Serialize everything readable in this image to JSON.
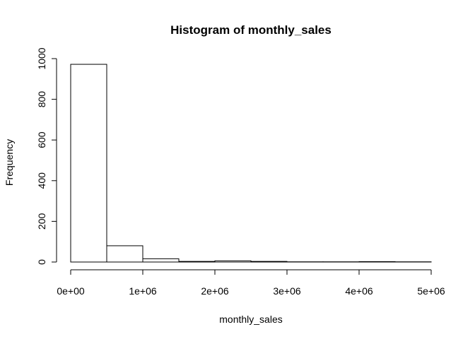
{
  "chart_data": {
    "type": "bar",
    "title": "Histogram of monthly_sales",
    "xlabel": "monthly_sales",
    "ylabel": "Frequency",
    "bins": [
      {
        "start": 0,
        "end": 500000,
        "count": 972
      },
      {
        "start": 500000,
        "end": 1000000,
        "count": 80
      },
      {
        "start": 1000000,
        "end": 1500000,
        "count": 16
      },
      {
        "start": 1500000,
        "end": 2000000,
        "count": 3
      },
      {
        "start": 2000000,
        "end": 2500000,
        "count": 6
      },
      {
        "start": 2500000,
        "end": 3000000,
        "count": 3
      },
      {
        "start": 3000000,
        "end": 3500000,
        "count": 1
      },
      {
        "start": 3500000,
        "end": 4000000,
        "count": 1
      },
      {
        "start": 4000000,
        "end": 4500000,
        "count": 2
      },
      {
        "start": 4500000,
        "end": 5000000,
        "count": 1
      }
    ],
    "xlim": [
      0,
      5000000
    ],
    "ylim": [
      0,
      1000
    ],
    "x_ticks": [
      {
        "value": 0,
        "label": "0e+00"
      },
      {
        "value": 1000000,
        "label": "1e+06"
      },
      {
        "value": 2000000,
        "label": "2e+06"
      },
      {
        "value": 3000000,
        "label": "3e+06"
      },
      {
        "value": 4000000,
        "label": "4e+06"
      },
      {
        "value": 5000000,
        "label": "5e+06"
      }
    ],
    "y_ticks": [
      {
        "value": 0,
        "label": "0"
      },
      {
        "value": 200,
        "label": "200"
      },
      {
        "value": 400,
        "label": "400"
      },
      {
        "value": 600,
        "label": "600"
      },
      {
        "value": 800,
        "label": "800"
      },
      {
        "value": 1000,
        "label": "1000"
      }
    ],
    "grid": false,
    "legend": "none"
  }
}
